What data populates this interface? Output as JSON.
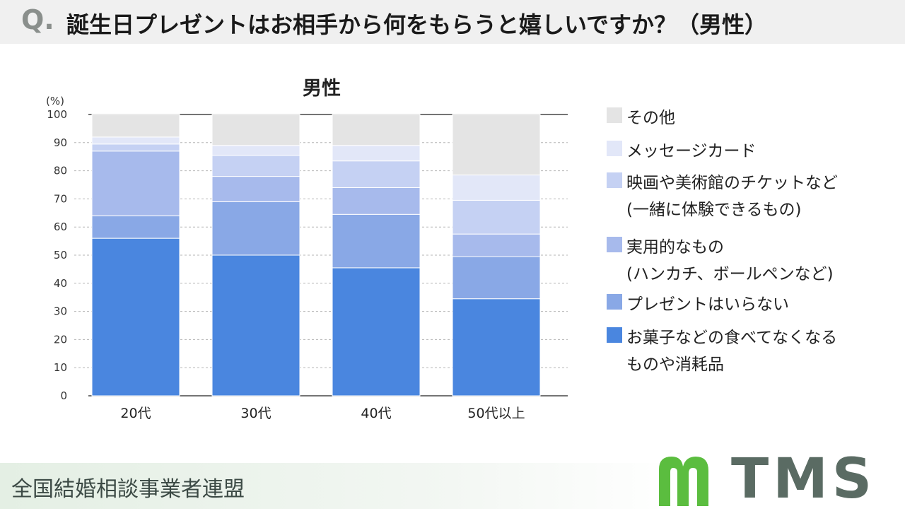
{
  "header": {
    "q_mark": "Q.",
    "question": "誕生日プレゼントはお相手から何をもらうと嬉しいですか？（男性）"
  },
  "chart_data": {
    "type": "bar",
    "stacked": true,
    "title": "男性",
    "ylabel": "(%)",
    "ylim": [
      0,
      100
    ],
    "yticks": [
      0,
      10,
      20,
      30,
      40,
      50,
      60,
      70,
      80,
      90,
      100
    ],
    "grid": true,
    "legend_position": "right",
    "categories": [
      "20代",
      "30代",
      "40代",
      "50代以上"
    ],
    "series": [
      {
        "name": "お菓子などの食べてなくなるものや消耗品",
        "color": "#4a86df",
        "values": [
          56,
          50,
          45.5,
          34.5
        ]
      },
      {
        "name": "プレゼントはいらない",
        "color": "#89a8e6",
        "values": [
          8,
          19,
          19,
          15
        ]
      },
      {
        "name": "実用的なもの（ハンカチ、ボールペンなど）",
        "color": "#a7baec",
        "values": [
          23,
          9,
          9.5,
          8
        ]
      },
      {
        "name": "映画や美術館のチケットなど（一緒に体験できるもの）",
        "color": "#c5d1f3",
        "values": [
          2.5,
          7.5,
          9.5,
          12
        ]
      },
      {
        "name": "メッセージカード",
        "color": "#e2e7f8",
        "values": [
          2.5,
          3.5,
          5.5,
          9
        ]
      },
      {
        "name": "その他",
        "color": "#e4e4e4",
        "values": [
          8,
          11,
          11,
          21.5
        ]
      }
    ]
  },
  "legend": [
    {
      "lines": [
        "その他"
      ],
      "color": "#e4e4e4"
    },
    {
      "lines": [
        "メッセージカード"
      ],
      "color": "#e2e7f8"
    },
    {
      "lines": [
        "映画や美術館のチケットなど",
        "(一緒に体験できるもの)"
      ],
      "color": "#c5d1f3"
    },
    {
      "lines": [
        "実用的なもの",
        "(ハンカチ、ボールペンなど)"
      ],
      "color": "#a7baec"
    },
    {
      "lines": [
        "プレゼントはいらない"
      ],
      "color": "#89a8e6"
    },
    {
      "lines": [
        "お菓子などの食べてなくなる",
        "ものや消耗品"
      ],
      "color": "#4a86df"
    }
  ],
  "footer": {
    "organization": "全国結婚相談事業者連盟",
    "logo_text": "TMS",
    "logo_mark_color": "#5bbd3f",
    "logo_text_color": "#5a6b63"
  }
}
